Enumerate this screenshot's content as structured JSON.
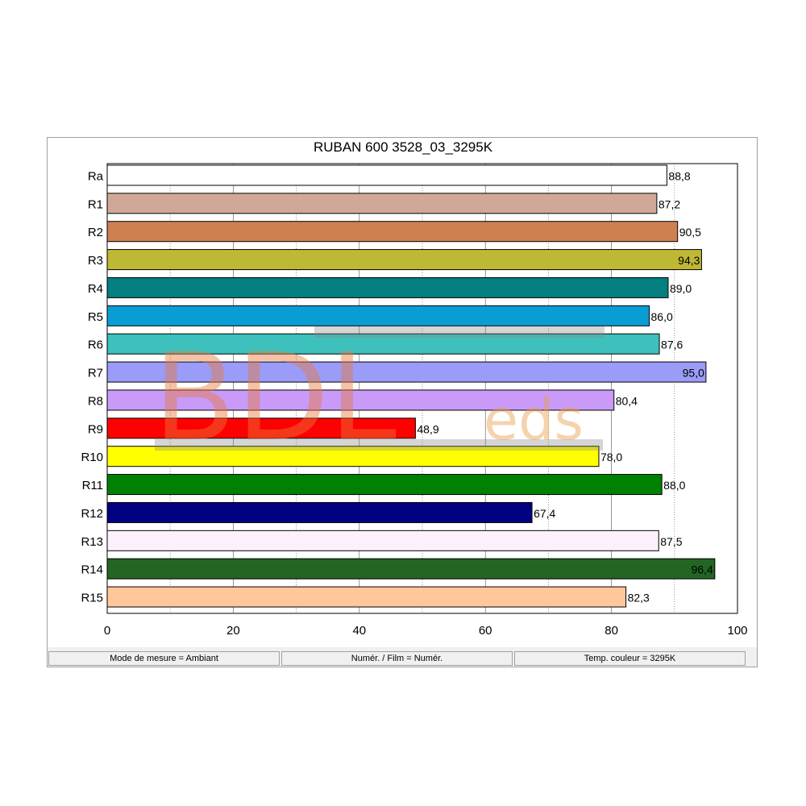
{
  "chart_data": {
    "type": "bar",
    "orientation": "horizontal",
    "title": "RUBAN 600 3528_03_3295K",
    "categories": [
      "Ra",
      "R1",
      "R2",
      "R3",
      "R4",
      "R5",
      "R6",
      "R7",
      "R8",
      "R9",
      "R10",
      "R11",
      "R12",
      "R13",
      "R14",
      "R15"
    ],
    "values": [
      88.8,
      87.2,
      90.5,
      94.3,
      89.0,
      86.0,
      87.6,
      95.0,
      80.4,
      48.9,
      78.0,
      88.0,
      67.4,
      87.5,
      96.4,
      82.3
    ],
    "value_labels": [
      "88,8",
      "87,2",
      "90,5",
      "94,3",
      "89,0",
      "86,0",
      "87,6",
      "95,0",
      "80,4",
      "48,9",
      "78,0",
      "88,0",
      "67,4",
      "87,5",
      "96,4",
      "82,3"
    ],
    "colors": [
      "#ffffff",
      "#cfa898",
      "#cd8050",
      "#bfb834",
      "#037f7f",
      "#0a9dd3",
      "#3ec0bc",
      "#9b9bf8",
      "#c99af7",
      "#ff0000",
      "#ffff00",
      "#008000",
      "#000080",
      "#fdf0fd",
      "#236623",
      "#ffc79a"
    ],
    "xlim": [
      0,
      100
    ],
    "xticks": [
      "0",
      "20",
      "40",
      "60",
      "80",
      "100"
    ],
    "xlabel": "",
    "ylabel": "",
    "grid": "vertical-dotted",
    "legend": "none"
  },
  "status_bar": {
    "measure_mode": "Mode de mesure = Ambiant",
    "numeric_film": "Numér. / Film = Numér.",
    "color_temp": "Temp. couleur = 3295K"
  },
  "watermark": {
    "text_main": "BDL",
    "text_sub": "eds",
    "color": "#e87a3c"
  }
}
